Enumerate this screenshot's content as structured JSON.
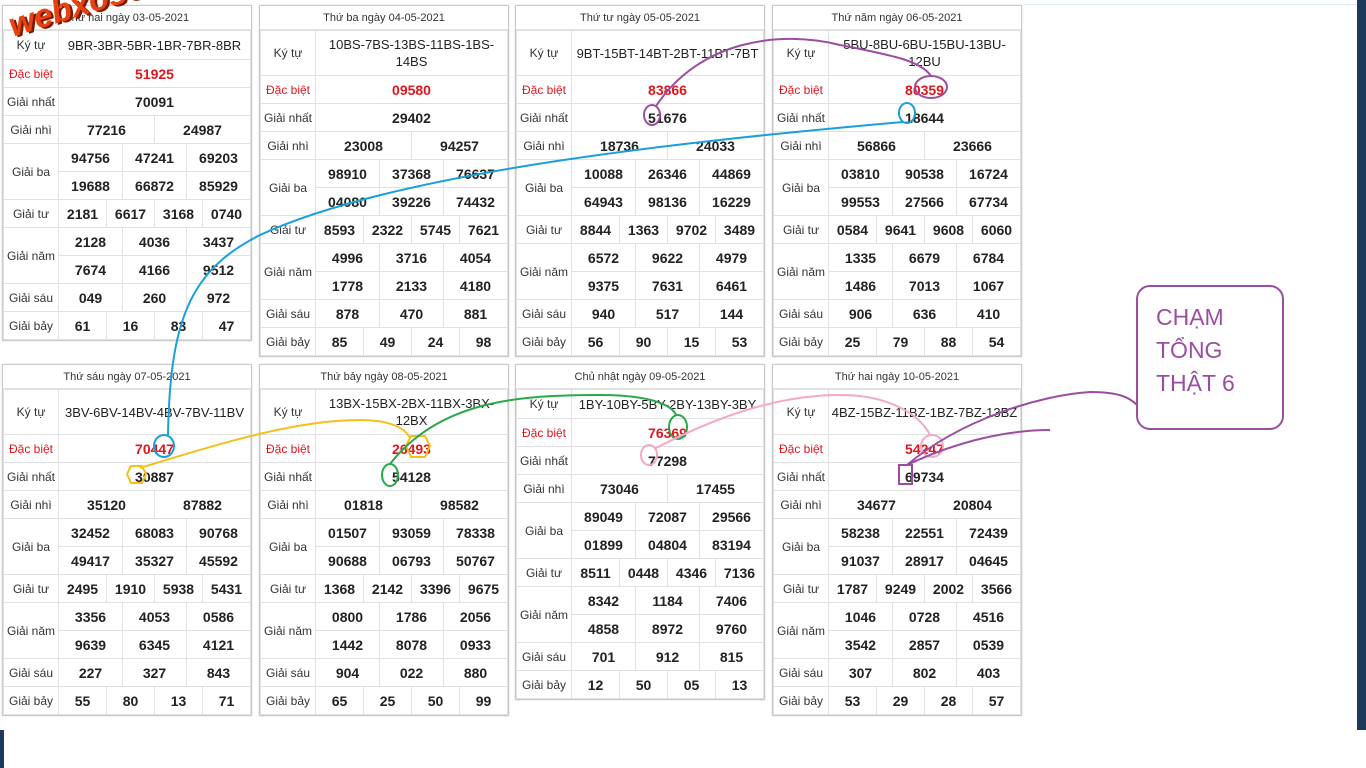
{
  "logo_text": "webxoso.net",
  "note": {
    "lines": [
      "CHẠM",
      "TỔNG",
      "THẬT 6"
    ]
  },
  "labels": {
    "ky_tu": "Ký tự",
    "dac_biet": "Đặc biệt",
    "giai_nhat": "Giải nhất",
    "giai_nhi": "Giải nhì",
    "giai_ba": "Giải ba",
    "giai_tu": "Giải tư",
    "giai_nam": "Giải năm",
    "giai_sau": "Giải sáu",
    "giai_bay": "Giải bảy"
  },
  "cards": [
    {
      "title": "Thứ hai ngày 03-05-2021",
      "ky_tu": "9BR-3BR-5BR-1BR-7BR-8BR",
      "db": "51925",
      "nhat": "70091",
      "nhi": [
        "77216",
        "24987"
      ],
      "ba": [
        "94756",
        "47241",
        "69203",
        "19688",
        "66872",
        "85929"
      ],
      "tu": [
        "2181",
        "6617",
        "3168",
        "0740"
      ],
      "nam": [
        "2128",
        "4036",
        "3437",
        "7674",
        "4166",
        "9512"
      ],
      "sau": [
        "049",
        "260",
        "972"
      ],
      "bay": [
        "61",
        "16",
        "83",
        "47"
      ]
    },
    {
      "title": "Thứ ba ngày 04-05-2021",
      "ky_tu": "10BS-7BS-13BS-11BS-1BS-14BS",
      "db": "09580",
      "nhat": "29402",
      "nhi": [
        "23008",
        "94257"
      ],
      "ba": [
        "98910",
        "37368",
        "76637",
        "04080",
        "39226",
        "74432"
      ],
      "tu": [
        "8593",
        "2322",
        "5745",
        "7621"
      ],
      "nam": [
        "4996",
        "3716",
        "4054",
        "1778",
        "2133",
        "4180"
      ],
      "sau": [
        "878",
        "470",
        "881"
      ],
      "bay": [
        "85",
        "49",
        "24",
        "98"
      ]
    },
    {
      "title": "Thứ tư ngày 05-05-2021",
      "ky_tu": "9BT-15BT-14BT-2BT-11BT-7BT",
      "db": "83866",
      "nhat": "51676",
      "nhi": [
        "18736",
        "24033"
      ],
      "ba": [
        "10088",
        "26346",
        "44869",
        "64943",
        "98136",
        "16229"
      ],
      "tu": [
        "8844",
        "1363",
        "9702",
        "3489"
      ],
      "nam": [
        "6572",
        "9622",
        "4979",
        "9375",
        "7631",
        "6461"
      ],
      "sau": [
        "940",
        "517",
        "144"
      ],
      "bay": [
        "56",
        "90",
        "15",
        "53"
      ]
    },
    {
      "title": "Thứ năm ngày 06-05-2021",
      "ky_tu": "5BU-8BU-6BU-15BU-13BU-12BU",
      "db": "80359",
      "nhat": "18644",
      "nhi": [
        "56866",
        "23666"
      ],
      "ba": [
        "03810",
        "90538",
        "16724",
        "99553",
        "27566",
        "67734"
      ],
      "tu": [
        "0584",
        "9641",
        "9608",
        "6060"
      ],
      "nam": [
        "1335",
        "6679",
        "6784",
        "1486",
        "7013",
        "1067"
      ],
      "sau": [
        "906",
        "636",
        "410"
      ],
      "bay": [
        "25",
        "79",
        "88",
        "54"
      ]
    },
    {
      "title": "Thứ sáu ngày 07-05-2021",
      "ky_tu": "3BV-6BV-14BV-4BV-7BV-11BV",
      "db": "70447",
      "nhat": "30887",
      "nhi": [
        "35120",
        "87882"
      ],
      "ba": [
        "32452",
        "68083",
        "90768",
        "49417",
        "35327",
        "45592"
      ],
      "tu": [
        "2495",
        "1910",
        "5938",
        "5431"
      ],
      "nam": [
        "3356",
        "4053",
        "0586",
        "9639",
        "6345",
        "4121"
      ],
      "sau": [
        "227",
        "327",
        "843"
      ],
      "bay": [
        "55",
        "80",
        "13",
        "71"
      ]
    },
    {
      "title": "Thứ bảy ngày 08-05-2021",
      "ky_tu": "13BX-15BX-2BX-11BX-3BX-12BX",
      "db": "26493",
      "nhat": "54128",
      "nhi": [
        "01818",
        "98582"
      ],
      "ba": [
        "01507",
        "93059",
        "78338",
        "90688",
        "06793",
        "50767"
      ],
      "tu": [
        "1368",
        "2142",
        "3396",
        "9675"
      ],
      "nam": [
        "0800",
        "1786",
        "2056",
        "1442",
        "8078",
        "0933"
      ],
      "sau": [
        "904",
        "022",
        "880"
      ],
      "bay": [
        "65",
        "25",
        "50",
        "99"
      ]
    },
    {
      "title": "Chủ nhật ngày 09-05-2021",
      "ky_tu": "1BY-10BY-5BY-2BY-13BY-3BY",
      "db": "76369",
      "nhat": "77298",
      "nhi": [
        "73046",
        "17455"
      ],
      "ba": [
        "89049",
        "72087",
        "29566",
        "01899",
        "04804",
        "83194"
      ],
      "tu": [
        "8511",
        "0448",
        "4346",
        "7136"
      ],
      "nam": [
        "8342",
        "1184",
        "7406",
        "4858",
        "8972",
        "9760"
      ],
      "sau": [
        "701",
        "912",
        "815"
      ],
      "bay": [
        "12",
        "50",
        "05",
        "13"
      ]
    },
    {
      "title": "Thứ hai ngày 10-05-2021",
      "ky_tu": "4BZ-15BZ-11BZ-1BZ-7BZ-13BZ",
      "db": "54247",
      "nhat": "69734",
      "nhi": [
        "34677",
        "20804"
      ],
      "ba": [
        "58238",
        "22551",
        "72439",
        "91037",
        "28917",
        "04645"
      ],
      "tu": [
        "1787",
        "9249",
        "2002",
        "3566"
      ],
      "nam": [
        "1046",
        "0728",
        "4516",
        "3542",
        "2857",
        "0539"
      ],
      "sau": [
        "307",
        "802",
        "403"
      ],
      "bay": [
        "53",
        "29",
        "28",
        "57"
      ]
    }
  ],
  "colors": {
    "purple": "#9b4da0",
    "blue": "#1a9fdb",
    "yellow": "#f4c01c",
    "green": "#2aa84a",
    "pink": "#f3a9c6",
    "red": "#e0161d"
  }
}
